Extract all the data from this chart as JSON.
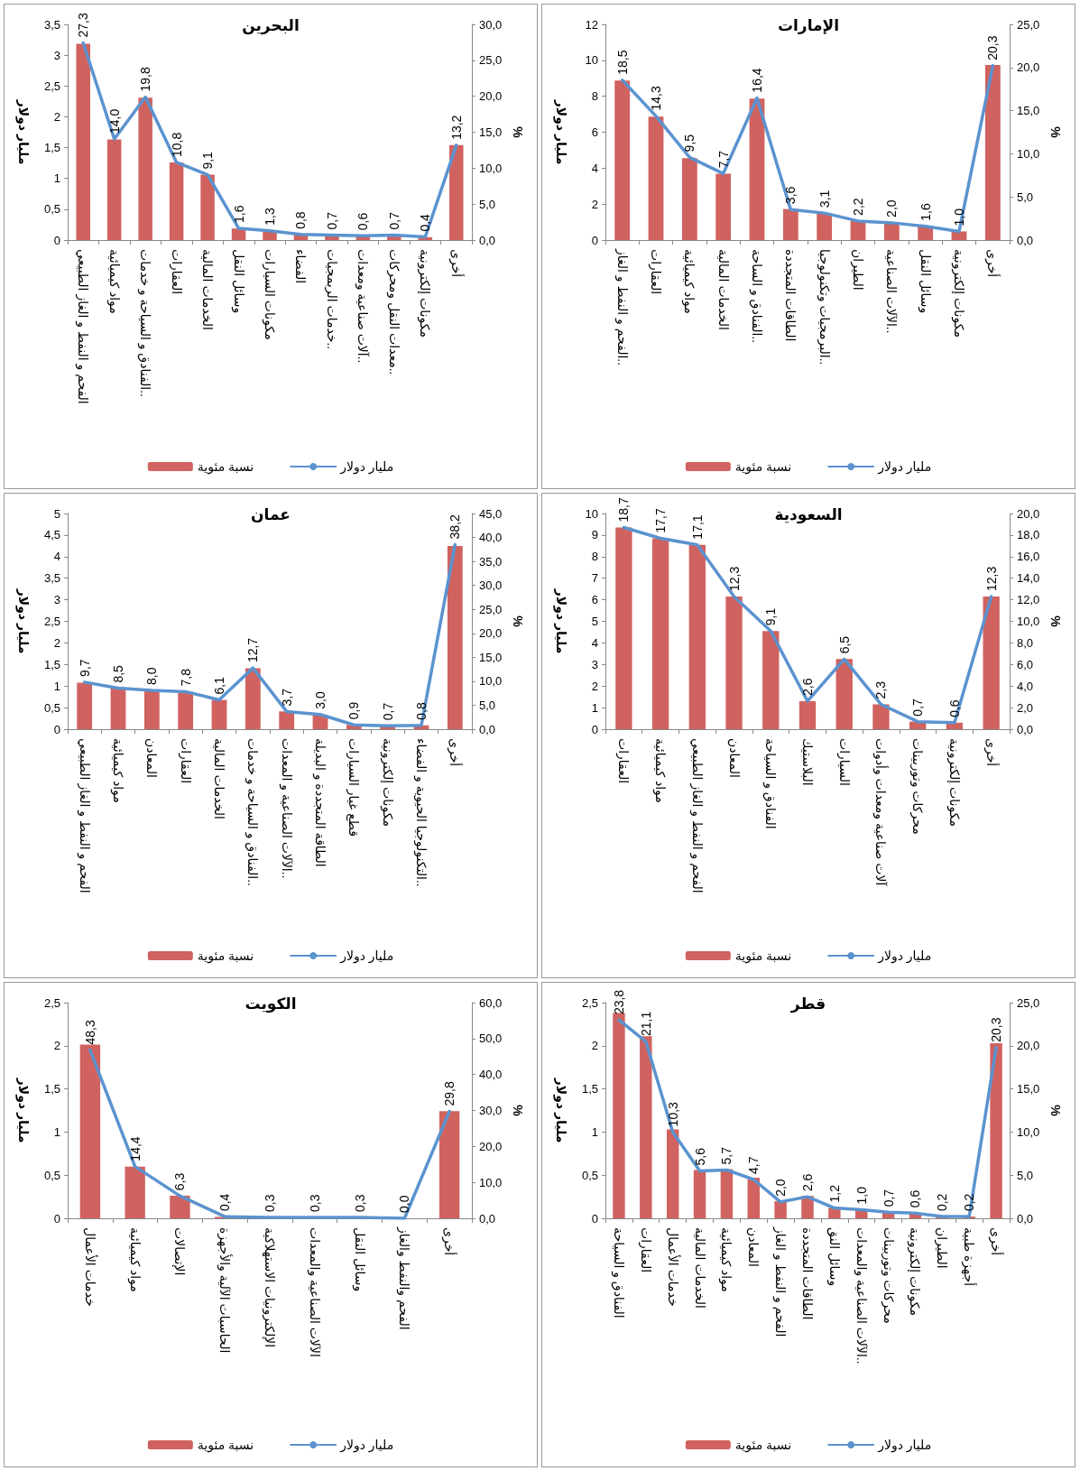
{
  "chart_data": [
    {
      "type": "bar",
      "title": "البحرين",
      "ylabel": "مليار دولار",
      "y2label": "%",
      "legend": "bottom",
      "marker": "none",
      "line_style": "solid",
      "categories": [
        "الفحم و النفط و الغاز الطبيعي",
        "مواد كيميائية",
        "الفنادق و السياحة و خدمات..",
        "العقارات",
        "الخدمات المالية",
        "وسائل النقل",
        "مكونات السيارات",
        "الفضاء",
        "خدمات الربمجيات..",
        "آلات صناعية ومعدات..",
        "معدات النقل ومحركات..",
        "مكونات إلكترونية",
        "أخرى"
      ],
      "ylim": [
        0,
        3.5
      ],
      "yticks": [
        0,
        {
          "value": 0.5,
          "label": "0,5"
        },
        1,
        {
          "value": 1.5,
          "label": "1,5"
        },
        2,
        {
          "value": 2.5,
          "label": "2,5"
        },
        3,
        {
          "value": 3.5,
          "label": "3,5"
        }
      ],
      "y2lim": [
        0,
        30
      ],
      "y2ticks": [
        {
          "value": 0,
          "label": "0,0"
        },
        {
          "value": 5,
          "label": "5,0"
        },
        {
          "value": 10,
          "label": "10,0"
        },
        {
          "value": 15,
          "label": "15,0"
        },
        {
          "value": 20,
          "label": "20,0"
        },
        {
          "value": 25,
          "label": "25,0"
        },
        {
          "value": 30,
          "label": "30,0"
        }
      ],
      "series": [
        {
          "name": "نسبة مئوية",
          "axis": "y2",
          "color": "#d0625f",
          "values": [
            27.3,
            14.0,
            19.8,
            10.8,
            9.1,
            1.6,
            1.3,
            0.8,
            0.7,
            0.6,
            0.7,
            0.4,
            13.2
          ],
          "value_labels": [
            "27,3",
            "14,0",
            "19,8",
            "10,8",
            "9,1",
            "1,6",
            "1,3",
            "0,8",
            "0,7",
            "0,6",
            "0,7",
            "0,4",
            "13,2"
          ]
        },
        {
          "name": "مليار دولار",
          "type": "line",
          "axis": "y",
          "color": "#5b93cf",
          "values": [
            3.2,
            1.64,
            2.32,
            1.26,
            1.06,
            0.19,
            0.15,
            0.09,
            0.08,
            0.07,
            0.08,
            0.05,
            1.54
          ]
        }
      ]
    },
    {
      "type": "bar",
      "title": "الإمارات",
      "ylabel": "مليار دولار",
      "y2label": "%",
      "legend": "bottom",
      "marker": "none",
      "line_style": "solid",
      "categories": [
        "الفحم و النفط و الغاز..",
        "العقارات",
        "مواد كيميائية",
        "الخدمات المالية",
        "الفنادق و الساحة..",
        "الطاقات المتجددة",
        "البرمجيات وتكنولوجيا..",
        "الطيران",
        "الآلات الصناعية..",
        "وسائل النقل",
        "مكونات إلكترونية",
        "أخرى"
      ],
      "ylim": [
        0,
        12
      ],
      "yticks": [
        0,
        2,
        4,
        6,
        8,
        10,
        12
      ],
      "y2lim": [
        0,
        25
      ],
      "y2ticks": [
        {
          "value": 0,
          "label": "0,0"
        },
        {
          "value": 5,
          "label": "5,0"
        },
        {
          "value": 10,
          "label": "10,0"
        },
        {
          "value": 15,
          "label": "15,0"
        },
        {
          "value": 20,
          "label": "20,0"
        },
        {
          "value": 25,
          "label": "25,0"
        }
      ],
      "series": [
        {
          "name": "نسبة مئوية",
          "axis": "y2",
          "color": "#d0625f",
          "values": [
            18.5,
            14.3,
            9.5,
            7.7,
            16.4,
            3.6,
            3.1,
            2.2,
            2.0,
            1.6,
            1.0,
            20.3
          ],
          "value_labels": [
            "18,5",
            "14,3",
            "9,5",
            "7,7",
            "16,4",
            "3,6",
            "3,1",
            "2,2",
            "2,0",
            "1,6",
            "1,0",
            "20,3"
          ]
        },
        {
          "name": "مليار دولار",
          "type": "line",
          "axis": "y",
          "color": "#5b93cf",
          "values": [
            8.9,
            6.9,
            4.6,
            3.7,
            7.9,
            1.7,
            1.5,
            1.06,
            0.96,
            0.77,
            0.48,
            9.7
          ]
        }
      ]
    },
    {
      "type": "bar",
      "title": "عمان",
      "ylabel": "مليار دولار",
      "y2label": "%",
      "legend": "bottom",
      "marker": "none",
      "line_style": "solid",
      "categories": [
        "الفحم و النفط و الغاز الطبيعي",
        "مواد كيميائية",
        "المعادن",
        "العقارات",
        "الخدمات المالية",
        "الفنادق و السياحة و خدمات..",
        "الآلات الصناعية و المعدات..",
        "الطاقة المتجددة و البديلة",
        "قطع غيار السيارات",
        "مكونات إلكترونية",
        "التكنولوجيا الحيوية و الفضاء..",
        "أخرى"
      ],
      "ylim": [
        0,
        5
      ],
      "yticks": [
        0,
        {
          "value": 0.5,
          "label": "0,5"
        },
        1,
        {
          "value": 1.5,
          "label": "1,5"
        },
        2,
        {
          "value": 2.5,
          "label": "2,5"
        },
        3,
        {
          "value": 3.5,
          "label": "3,5"
        },
        4,
        {
          "value": 4.5,
          "label": "4,5"
        },
        5
      ],
      "y2lim": [
        0,
        45
      ],
      "y2ticks": [
        {
          "value": 0,
          "label": "0,0"
        },
        {
          "value": 5,
          "label": "5,0"
        },
        {
          "value": 10,
          "label": "10,0"
        },
        {
          "value": 15,
          "label": "15,0"
        },
        {
          "value": 20,
          "label": "20,0"
        },
        {
          "value": 25,
          "label": "25,0"
        },
        {
          "value": 30,
          "label": "30,0"
        },
        {
          "value": 35,
          "label": "35,0"
        },
        {
          "value": 40,
          "label": "40,0"
        },
        {
          "value": 45,
          "label": "45,0"
        }
      ],
      "series": [
        {
          "name": "نسبة مئوية",
          "axis": "y2",
          "color": "#d0625f",
          "values": [
            9.7,
            8.5,
            8.0,
            7.8,
            6.1,
            12.7,
            3.7,
            3.0,
            0.9,
            0.7,
            0.8,
            38.2
          ],
          "value_labels": [
            "9,7",
            "8,5",
            "8,0",
            "7,8",
            "6,1",
            "12,7",
            "3,7",
            "3,0",
            "0,9",
            "0,7",
            "0,8",
            "38,2"
          ]
        },
        {
          "name": "مليار دولار",
          "type": "line",
          "axis": "y",
          "color": "#5b93cf",
          "values": [
            1.09,
            0.95,
            0.9,
            0.87,
            0.68,
            1.42,
            0.41,
            0.34,
            0.1,
            0.08,
            0.09,
            4.28
          ]
        }
      ]
    },
    {
      "type": "bar",
      "title": "السعودية",
      "ylabel": "مليار دولار",
      "y2label": "%",
      "legend": "bottom",
      "marker": "none",
      "line_style": "solid",
      "categories": [
        "العقارات",
        "مواد كيميائية",
        "الفحم و النفط و الغاز الطبيعي",
        "المعادن",
        "الفنادق و السياحة",
        "البلاستيك",
        "السيارات",
        "آلات صناعية ومعدات وأدوات",
        "محركات وتوربينات",
        "مكونات إلكترونية",
        "أخرى"
      ],
      "ylim": [
        0,
        10
      ],
      "yticks": [
        0,
        1,
        2,
        3,
        4,
        5,
        6,
        7,
        8,
        9,
        10
      ],
      "y2lim": [
        0,
        20
      ],
      "y2ticks": [
        {
          "value": 0,
          "label": "0,0"
        },
        {
          "value": 2,
          "label": "2,0"
        },
        {
          "value": 4,
          "label": "4,0"
        },
        {
          "value": 6,
          "label": "6,0"
        },
        {
          "value": 8,
          "label": "8,0"
        },
        {
          "value": 10,
          "label": "10,0"
        },
        {
          "value": 12,
          "label": "12,0"
        },
        {
          "value": 14,
          "label": "14,0"
        },
        {
          "value": 16,
          "label": "16,0"
        },
        {
          "value": 18,
          "label": "18,0"
        },
        {
          "value": 20,
          "label": "20,0"
        }
      ],
      "series": [
        {
          "name": "نسبة مئوية",
          "axis": "y2",
          "color": "#d0625f",
          "values": [
            18.7,
            17.7,
            17.1,
            12.3,
            9.1,
            2.6,
            6.5,
            2.3,
            0.7,
            0.6,
            12.3
          ],
          "value_labels": [
            "18,7",
            "17,7",
            "17,1",
            "12,3",
            "9,1",
            "2,6",
            "6,5",
            "2,3",
            "0,7",
            "0,6",
            "12,3"
          ]
        },
        {
          "name": "مليار دولار",
          "type": "line",
          "axis": "y",
          "color": "#5b93cf",
          "values": [
            9.35,
            8.85,
            8.55,
            6.15,
            4.55,
            1.3,
            3.25,
            1.15,
            0.35,
            0.3,
            6.15
          ]
        }
      ]
    },
    {
      "type": "bar",
      "title": "الكويت",
      "ylabel": "مليار دولار",
      "y2label": "%",
      "legend": "bottom",
      "marker": "none",
      "line_style": "solid",
      "categories": [
        "خدمات الأعمال",
        "مواد كيميائية",
        "الإتصالات",
        "الحاسبات الآلية والأجهزة",
        "الإلكترونيات الاستهلاكية",
        "الآلات الصناعية والمعدات",
        "وسائل النقل",
        "الفحم والنفط والغاز",
        "أخرى"
      ],
      "ylim": [
        0,
        2.5
      ],
      "yticks": [
        0,
        {
          "value": 0.5,
          "label": "0,5"
        },
        1,
        {
          "value": 1.5,
          "label": "1,5"
        },
        2,
        {
          "value": 2.5,
          "label": "2,5"
        }
      ],
      "y2lim": [
        0,
        60
      ],
      "y2ticks": [
        {
          "value": 0,
          "label": "0,0"
        },
        {
          "value": 10,
          "label": "10,0"
        },
        {
          "value": 20,
          "label": "20,0"
        },
        {
          "value": 30,
          "label": "30,0"
        },
        {
          "value": 40,
          "label": "40,0"
        },
        {
          "value": 50,
          "label": "50,0"
        },
        {
          "value": 60,
          "label": "60,0"
        }
      ],
      "series": [
        {
          "name": "نسبة مئوية",
          "axis": "y2",
          "color": "#d0625f",
          "values": [
            48.3,
            14.4,
            6.3,
            0.4,
            0.3,
            0.3,
            0.3,
            0.0,
            29.8
          ],
          "value_labels": [
            "48,3",
            "14,4",
            "6,3",
            "0,4",
            "0,3",
            "0,3",
            "0,3",
            "0,0",
            "29,8"
          ]
        },
        {
          "name": "مليار دولار",
          "type": "line",
          "axis": "y",
          "color": "#5b93cf",
          "values": [
            1.95,
            0.6,
            0.26,
            0.02,
            0.01,
            0.01,
            0.01,
            0.0,
            1.24
          ]
        }
      ]
    },
    {
      "type": "bar",
      "title": "قطر",
      "ylabel": "مليار دولار",
      "y2label": "%",
      "legend": "bottom",
      "marker": "none",
      "line_style": "solid",
      "categories": [
        "الفنادق و السياحة",
        "العقارات",
        "خدمات الأعمال",
        "الخدمات المالية",
        "مواد كيميائية",
        "المعادن",
        "الفحم و النفط و الغاز",
        "الطاقات المتجددة",
        "وسائل النق",
        "الآلات الصناعية والمعدات..",
        "محركات وتوربينات",
        "مكونات إلكترونية",
        "الطيران",
        "أجهزة طبية",
        "أخرى"
      ],
      "ylim": [
        0,
        2.5
      ],
      "yticks": [
        0,
        {
          "value": 0.5,
          "label": "0,5"
        },
        1,
        {
          "value": 1.5,
          "label": "1,5"
        },
        2,
        {
          "value": 2.5,
          "label": "2,5"
        }
      ],
      "y2lim": [
        0,
        25
      ],
      "y2ticks": [
        {
          "value": 0,
          "label": "0,0"
        },
        {
          "value": 5,
          "label": "5,0"
        },
        {
          "value": 10,
          "label": "10,0"
        },
        {
          "value": 15,
          "label": "15,0"
        },
        {
          "value": 20,
          "label": "20,0"
        },
        {
          "value": 25,
          "label": "25,0"
        }
      ],
      "series": [
        {
          "name": "نسبة مئوية",
          "axis": "y2",
          "color": "#d0625f",
          "values": [
            23.8,
            21.1,
            10.3,
            5.6,
            5.7,
            4.7,
            2.0,
            2.6,
            1.2,
            1.0,
            0.7,
            0.6,
            0.2,
            0.2,
            20.3
          ],
          "value_labels": [
            "23,8",
            "21,1",
            "10,3",
            "5,6",
            "5,7",
            "4,7",
            "2,0",
            "2,6",
            "1,2",
            "1,0",
            "0,7",
            "0,6",
            "0,2",
            "0,2",
            "20,3"
          ]
        },
        {
          "name": "مليار دولار",
          "type": "line",
          "axis": "y",
          "color": "#5b93cf",
          "values": [
            2.3,
            2.05,
            1.0,
            0.55,
            0.56,
            0.45,
            0.19,
            0.25,
            0.12,
            0.1,
            0.07,
            0.06,
            0.02,
            0.02,
            1.98
          ]
        }
      ]
    }
  ]
}
